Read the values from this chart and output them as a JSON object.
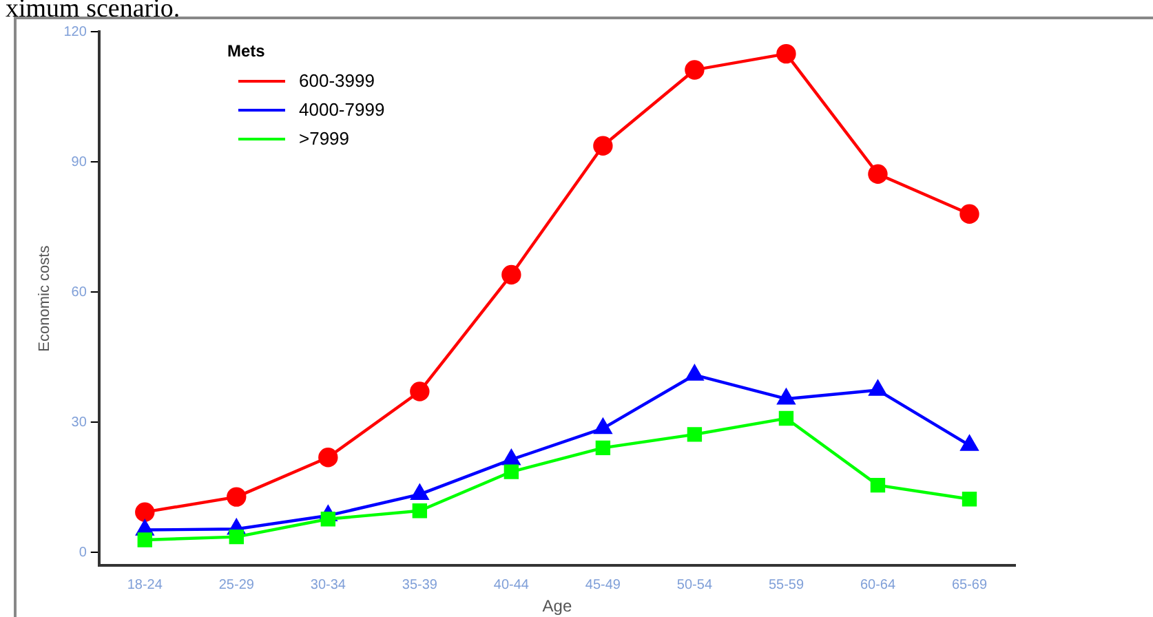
{
  "chart_data": {
    "type": "line",
    "xlabel": "Age",
    "ylabel": "Economic costs",
    "legend_title": "Mets",
    "legend": "top left",
    "grid": false,
    "annotations": [
      "ximum scenario."
    ],
    "categories": [
      "18-24",
      "25-29",
      "30-34",
      "35-39",
      "40-44",
      "45-49",
      "50-54",
      "55-59",
      "60-64",
      "65-69"
    ],
    "ylim": [
      -3,
      120
    ],
    "yticks": [
      0,
      30,
      60,
      90,
      120
    ],
    "series": [
      {
        "name": "600-3999",
        "color": "#ff0000",
        "marker": "circle",
        "values": [
          9.3,
          12.8,
          21.9,
          37.1,
          64.0,
          93.7,
          111.2,
          114.9,
          87.2,
          78.0
        ]
      },
      {
        "name": "4000-7999",
        "color": "#0000ff",
        "marker": "triangle",
        "values": [
          5.2,
          5.4,
          8.5,
          13.4,
          21.4,
          28.6,
          40.9,
          35.4,
          37.4,
          24.7
        ]
      },
      {
        "name": ">7999",
        "color": "#00ff00",
        "marker": "square",
        "values": [
          2.9,
          3.6,
          7.7,
          9.6,
          18.6,
          24.1,
          27.2,
          30.9,
          15.5,
          12.3
        ]
      }
    ]
  }
}
